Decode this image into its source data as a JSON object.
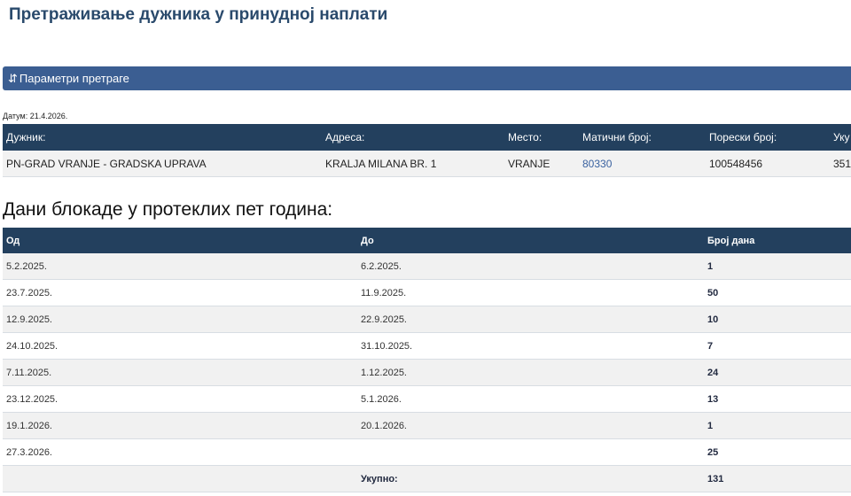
{
  "page_title": "Претраживање дужника у принудној наплати",
  "panel": {
    "icon": "sort-arrows-icon",
    "icon_glyph": "⇵",
    "label": "Параметри претраге"
  },
  "date_label": "Датум: 21.4.2026.",
  "debtor_table": {
    "headers": [
      "Дужник:",
      "Адреса:",
      "Место:",
      "Матични број:",
      "Порески број:",
      "Уку"
    ],
    "row": [
      "PN-GRAD VRANJE - GRADSKA UPRAVA",
      "KRALJA MILANA BR. 1",
      "VRANJE",
      "80330",
      "100548456",
      "351"
    ]
  },
  "blockade_heading": "Дани блокаде у протеклих пет година:",
  "blockade_table": {
    "headers": [
      "Од",
      "До",
      "Број дана"
    ],
    "rows": [
      [
        "5.2.2025.",
        "6.2.2025.",
        "1"
      ],
      [
        "23.7.2025.",
        "11.9.2025.",
        "50"
      ],
      [
        "12.9.2025.",
        "22.9.2025.",
        "10"
      ],
      [
        "24.10.2025.",
        "31.10.2025.",
        "7"
      ],
      [
        "7.11.2025.",
        "1.12.2025.",
        "24"
      ],
      [
        "23.12.2025.",
        "5.1.2026.",
        "13"
      ],
      [
        "19.1.2026.",
        "20.1.2026.",
        "1"
      ],
      [
        "27.3.2026.",
        "",
        "25"
      ]
    ],
    "total_label": "Укупно:",
    "total": "131"
  }
}
